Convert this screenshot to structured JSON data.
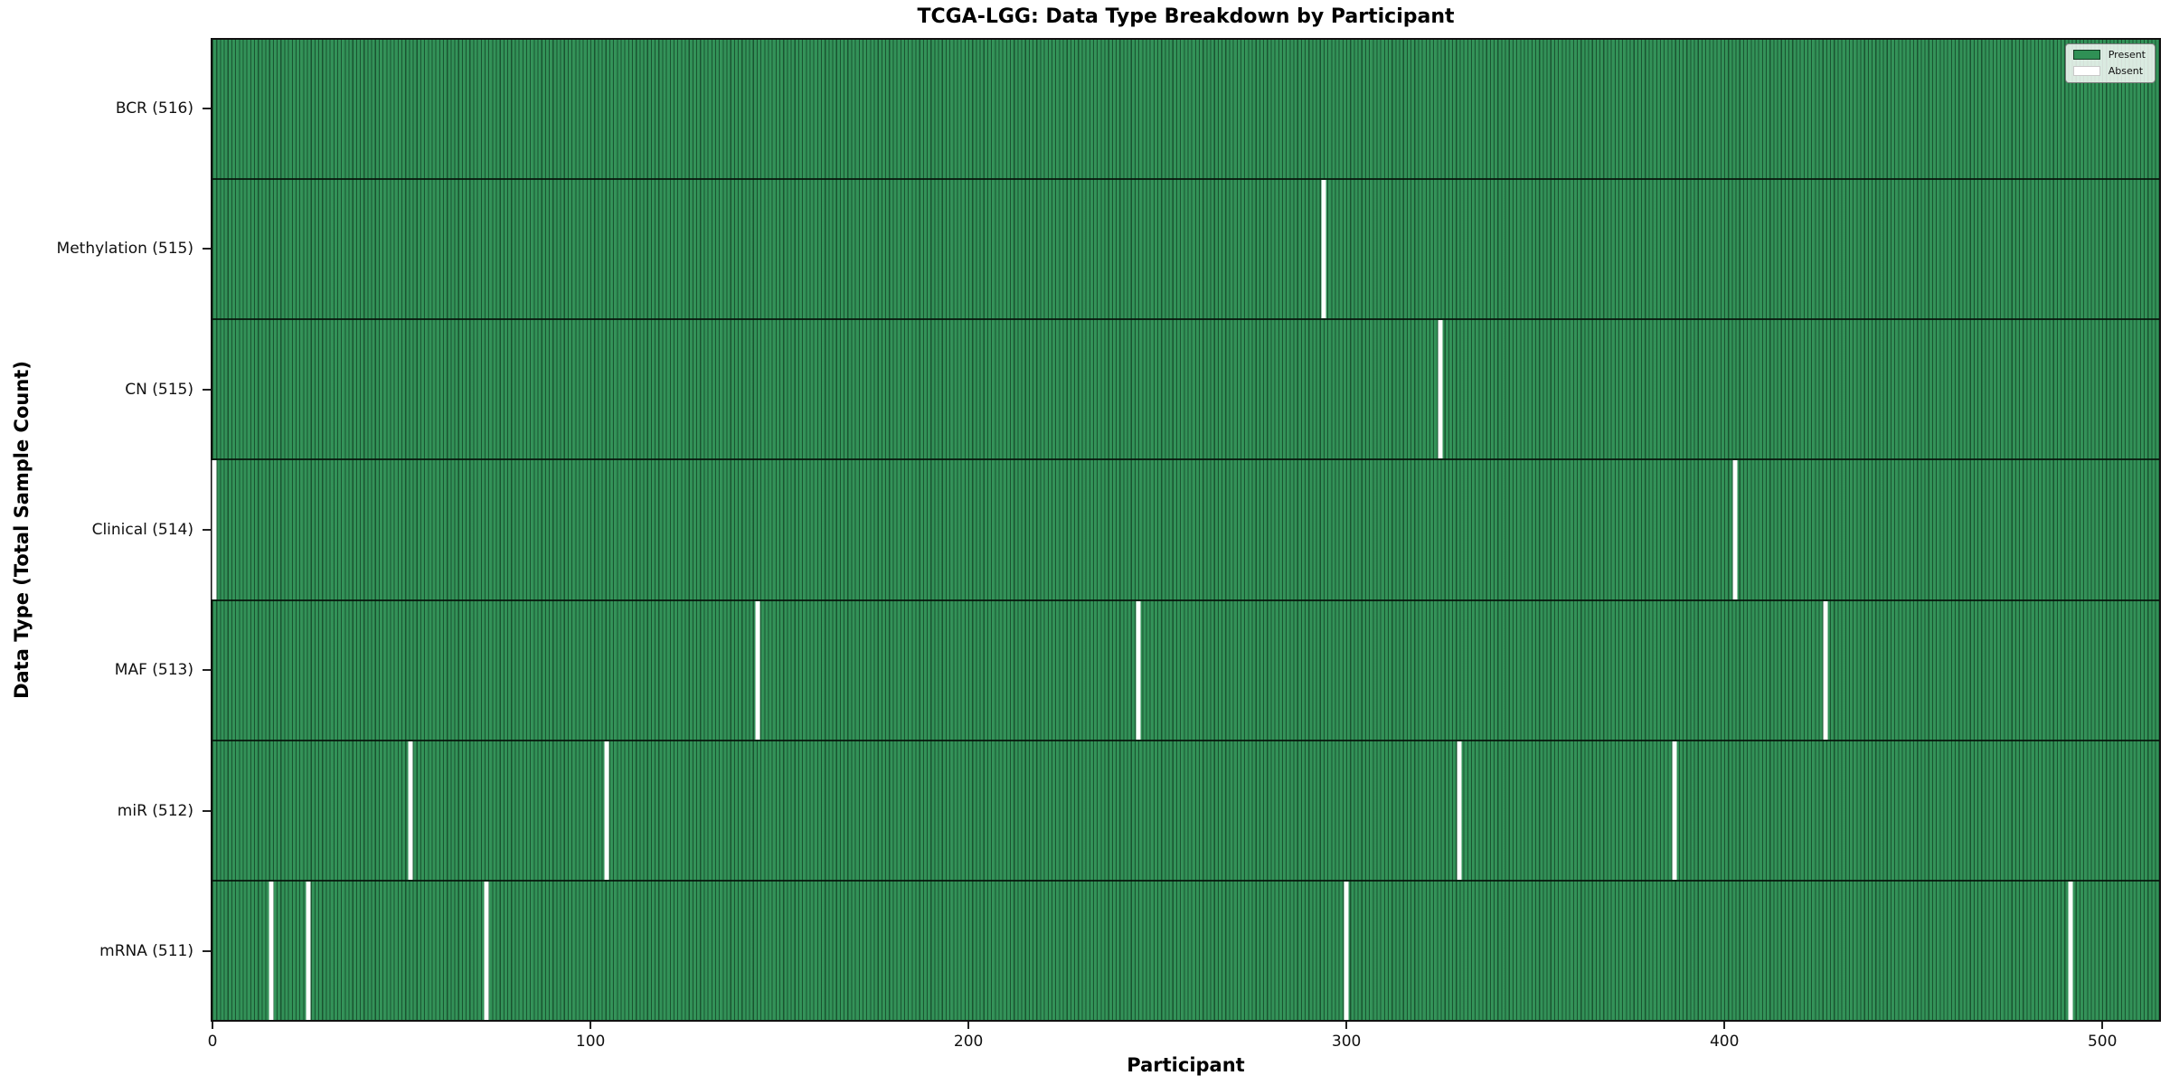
{
  "chart_data": {
    "type": "heatmap",
    "title": "TCGA-LGG: Data Type Breakdown by Participant",
    "xlabel": "Participant",
    "ylabel": "Data Type (Total Sample Count)",
    "n_participants": 516,
    "x_ticks": [
      0,
      100,
      200,
      300,
      400,
      500
    ],
    "xlim": [
      0,
      516
    ],
    "grid": false,
    "legend": {
      "position": "upper right",
      "entries": [
        {
          "label": "Present",
          "color": "#2f9055"
        },
        {
          "label": "Absent",
          "color": "#ffffff"
        }
      ]
    },
    "colors": {
      "present_fill": "#2f9055",
      "bar_edge": "#0a2213",
      "absent_fill": "#ffffff",
      "spine": "#111111",
      "background": "#ffffff"
    },
    "rows": [
      {
        "label": "BCR (516)",
        "name": "BCR",
        "present_count": 516,
        "absent_participants": []
      },
      {
        "label": "Methylation (515)",
        "name": "Methylation",
        "present_count": 515,
        "absent_participants": [
          294
        ]
      },
      {
        "label": "CN (515)",
        "name": "CN",
        "present_count": 515,
        "absent_participants": [
          325
        ]
      },
      {
        "label": "Clinical (514)",
        "name": "Clinical",
        "present_count": 514,
        "absent_participants": [
          0,
          403
        ]
      },
      {
        "label": "MAF (513)",
        "name": "MAF",
        "present_count": 513,
        "absent_participants": [
          144,
          245,
          427
        ]
      },
      {
        "label": "miR (512)",
        "name": "miR",
        "present_count": 512,
        "absent_participants": [
          52,
          104,
          330,
          387
        ]
      },
      {
        "label": "mRNA (511)",
        "name": "mRNA",
        "present_count": 511,
        "absent_participants": [
          15,
          25,
          72,
          300,
          492
        ]
      }
    ]
  }
}
